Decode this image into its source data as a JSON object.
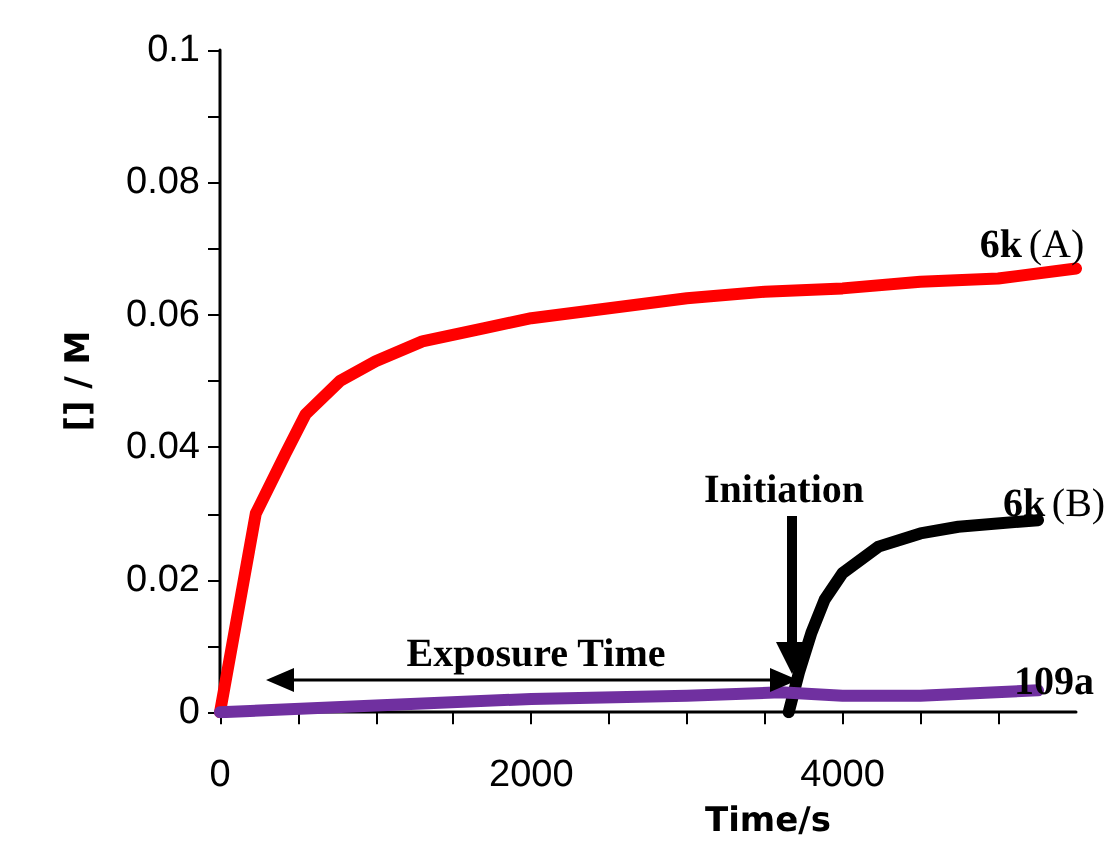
{
  "chart_data": {
    "type": "line",
    "xlabel": "Time/s",
    "ylabel": "[] / M",
    "xlim": [
      0,
      5500
    ],
    "xticks": [
      0,
      {
        "value": 500,
        "label": null
      },
      {
        "value": 1000,
        "label": null
      },
      {
        "value": 1500,
        "label": null
      },
      2000,
      {
        "value": 2500,
        "label": null
      },
      {
        "value": 3000,
        "label": null
      },
      {
        "value": 3500,
        "label": null
      },
      4000,
      {
        "value": 4500,
        "label": null
      },
      {
        "value": 5000,
        "label": null
      }
    ],
    "ylim": [
      0,
      0.1
    ],
    "yticks": [
      0,
      {
        "value": 0.01,
        "label": null
      },
      0.02,
      {
        "value": 0.03,
        "label": null
      },
      0.04,
      {
        "value": 0.05,
        "label": null
      },
      0.06,
      {
        "value": 0.07,
        "label": null
      },
      0.08,
      {
        "value": 0.09,
        "label": null
      },
      0.1
    ],
    "grid": false,
    "legend": false,
    "marker": "none",
    "line_style": "solid",
    "series": [
      {
        "name": "6k (A)",
        "color": "#ff0000",
        "x": [
          0,
          230,
          420,
          550,
          770,
          1000,
          1300,
          1700,
          2000,
          2500,
          3000,
          3500,
          4000,
          4500,
          5000,
          5500
        ],
        "values": [
          0,
          0.03,
          0.039,
          0.045,
          0.05,
          0.053,
          0.056,
          0.058,
          0.0595,
          0.061,
          0.0625,
          0.0635,
          0.064,
          0.065,
          0.0655,
          0.067
        ]
      },
      {
        "name": "6k (B)",
        "color": "#000000",
        "x": [
          3654,
          3720,
          3800,
          3885,
          4000,
          4231,
          4500,
          4744,
          5256
        ],
        "values": [
          0,
          0.006,
          0.012,
          0.017,
          0.021,
          0.025,
          0.027,
          0.028,
          0.029
        ]
      },
      {
        "name": "109a",
        "color": "#7030a0",
        "x": [
          0,
          1000,
          2000,
          3000,
          3600,
          4000,
          4500,
          5256
        ],
        "values": [
          0,
          0.001,
          0.002,
          0.0025,
          0.003,
          0.0025,
          0.0025,
          0.0033
        ]
      }
    ],
    "annotations": [
      "Exposure Time",
      "Initiation"
    ]
  }
}
